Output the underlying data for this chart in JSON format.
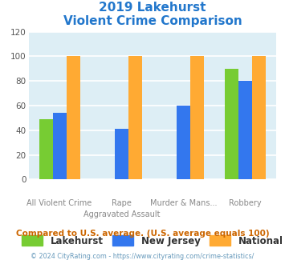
{
  "title_line1": "2019 Lakehurst",
  "title_line2": "Violent Crime Comparison",
  "title_color": "#2277cc",
  "group_labels_row1": [
    "",
    "Rape",
    "Murder & Mans...",
    ""
  ],
  "group_labels_row2": [
    "All Violent Crime",
    "Aggravated Assault",
    "",
    "Robbery"
  ],
  "lakehurst": [
    49,
    0,
    0,
    90
  ],
  "new_jersey": [
    54,
    41,
    60,
    80
  ],
  "national": [
    100,
    100,
    100,
    100
  ],
  "color_lakehurst": "#77cc33",
  "color_nj": "#3377ee",
  "color_national": "#ffaa33",
  "ylim": [
    0,
    120
  ],
  "yticks": [
    0,
    20,
    40,
    60,
    80,
    100,
    120
  ],
  "bg_color": "#ddeef5",
  "grid_color": "#ffffff",
  "footer_text": "Compared to U.S. average. (U.S. average equals 100)",
  "footer_color": "#cc6600",
  "copyright_text": "© 2024 CityRating.com - https://www.cityrating.com/crime-statistics/",
  "copyright_color": "#6699bb",
  "legend_labels": [
    "Lakehurst",
    "New Jersey",
    "National"
  ]
}
